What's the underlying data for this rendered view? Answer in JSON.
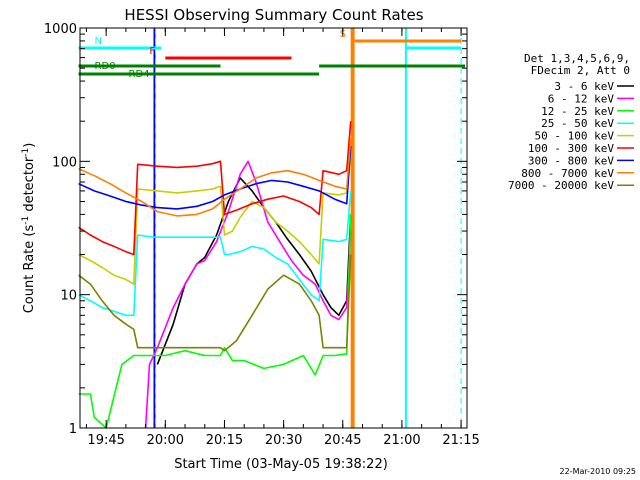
{
  "chart_data": {
    "type": "line",
    "title": "HESSI Observing Summary Count Rates",
    "xlabel": "Start Time (03-May-05 19:38:22)",
    "ylabel": "Count Rate (s-1 detector-1)",
    "ylabel_parts": {
      "main": "Count Rate (s",
      "sup1": "-1",
      "mid": " detector",
      "sup2": "-1",
      "end": ")"
    },
    "xlim": [
      "19:38:22",
      "21:16:30"
    ],
    "ylim": [
      1,
      1000
    ],
    "yscale": "log",
    "x_ticks": [
      "19:45",
      "20:00",
      "20:15",
      "20:30",
      "20:45",
      "21:00",
      "21:15"
    ],
    "y_ticks": [
      "1",
      "10",
      "100",
      "1000"
    ],
    "legend_header": [
      "Det 1,3,4,5,6,9,",
      "FDecim 2, Att 0"
    ],
    "legend_position": "right",
    "timestamp": "22-Mar-2010 09:25",
    "series": [
      {
        "name": "3 - 6 keV",
        "color": "#000000",
        "x": [
          "19:58",
          "20:02",
          "20:05",
          "20:08",
          "20:10",
          "20:13",
          "20:16",
          "20:19",
          "20:22",
          "20:25",
          "20:28",
          "20:31",
          "20:34",
          "20:37",
          "20:40",
          "20:42",
          "20:44",
          "20:46",
          "20:47"
        ],
        "y": [
          3,
          6,
          12,
          17,
          19,
          28,
          50,
          75,
          60,
          45,
          35,
          26,
          20,
          15,
          10,
          8,
          7,
          9,
          40
        ]
      },
      {
        "name": "6 - 12 keV",
        "color": "#ff00ff",
        "x": [
          "19:55",
          "19:56",
          "19:58",
          "20:02",
          "20:05",
          "20:08",
          "20:10",
          "20:13",
          "20:16",
          "20:19",
          "20:21",
          "20:23",
          "20:26",
          "20:29",
          "20:32",
          "20:35",
          "20:38",
          "20:40",
          "20:42",
          "20:44",
          "20:46",
          "20:47"
        ],
        "y": [
          1,
          3,
          4,
          8,
          12,
          17,
          18,
          25,
          42,
          80,
          100,
          70,
          35,
          25,
          18,
          14,
          12,
          9,
          7,
          6.5,
          8,
          30
        ]
      },
      {
        "name": "12 - 25 keV",
        "color": "#00ff00",
        "x": [
          "19:38",
          "19:41",
          "19:42",
          "19:45",
          "19:49",
          "19:52",
          "19:56",
          "20:00",
          "20:05",
          "20:10",
          "20:14",
          "20:15",
          "20:17",
          "20:20",
          "20:25",
          "20:30",
          "20:35",
          "20:38",
          "20:40",
          "20:43",
          "20:46",
          "20:47"
        ],
        "y": [
          1.8,
          1.8,
          1.2,
          1,
          3,
          3.5,
          3.5,
          3.5,
          3.8,
          3.5,
          3.5,
          4,
          3.2,
          3.2,
          2.8,
          3,
          3.5,
          2.5,
          3.5,
          3.5,
          3.6,
          40
        ]
      },
      {
        "name": "25 - 50 keV",
        "color": "#00ffff",
        "x": [
          "19:38",
          "19:41",
          "19:44",
          "19:47",
          "19:50",
          "19:52",
          "19:53",
          "19:57",
          "20:02",
          "20:07",
          "20:12",
          "20:14",
          "20:15",
          "20:16",
          "20:19",
          "20:22",
          "20:25",
          "20:28",
          "20:31",
          "20:34",
          "20:37",
          "20:39",
          "20:40",
          "20:44",
          "20:46",
          "20:47"
        ],
        "y": [
          10,
          9,
          8,
          7.5,
          7,
          7,
          28,
          27,
          27,
          27,
          27,
          27,
          20,
          20,
          21,
          23,
          22,
          19,
          17,
          13,
          10,
          9,
          26,
          25,
          26,
          60
        ]
      },
      {
        "name": "50 - 100 keV",
        "color": "#cccc00",
        "x": [
          "19:38",
          "19:41",
          "19:44",
          "19:47",
          "19:50",
          "19:52",
          "19:53",
          "19:58",
          "20:03",
          "20:08",
          "20:12",
          "20:14",
          "20:15",
          "20:17",
          "20:19",
          "20:22",
          "20:25",
          "20:28",
          "20:31",
          "20:34",
          "20:37",
          "20:39",
          "20:40",
          "20:44",
          "20:46",
          "20:47"
        ],
        "y": [
          20,
          18,
          16,
          14,
          13,
          12,
          62,
          60,
          58,
          60,
          62,
          65,
          28,
          30,
          38,
          50,
          45,
          35,
          30,
          25,
          20,
          17,
          58,
          56,
          58,
          110
        ]
      },
      {
        "name": "100 - 300 keV",
        "color": "#ff0000",
        "x": [
          "19:38",
          "19:41",
          "19:44",
          "19:47",
          "19:50",
          "19:52",
          "19:53",
          "19:58",
          "20:03",
          "20:08",
          "20:12",
          "20:14",
          "20:15",
          "20:18",
          "20:22",
          "20:26",
          "20:30",
          "20:34",
          "20:37",
          "20:39",
          "20:40",
          "20:44",
          "20:46",
          "20:47"
        ],
        "y": [
          32,
          28,
          25,
          23,
          21,
          20,
          95,
          92,
          90,
          92,
          96,
          100,
          40,
          43,
          48,
          52,
          55,
          50,
          45,
          40,
          85,
          80,
          85,
          200
        ]
      },
      {
        "name": "300 - 800 keV",
        "color": "#0000ff",
        "x": [
          "19:38",
          "19:42",
          "19:46",
          "19:50",
          "19:54",
          "19:58",
          "20:03",
          "20:08",
          "20:12",
          "20:15",
          "20:19",
          "20:23",
          "20:27",
          "20:31",
          "20:35",
          "20:39",
          "20:43",
          "20:46",
          "20:47"
        ],
        "y": [
          68,
          60,
          55,
          50,
          47,
          45,
          44,
          46,
          50,
          56,
          62,
          68,
          72,
          70,
          65,
          60,
          52,
          48,
          130
        ]
      },
      {
        "name": "800 - 7000 keV",
        "color": "#ff7f00",
        "x": [
          "19:38",
          "19:42",
          "19:46",
          "19:50",
          "19:54",
          "19:58",
          "20:03",
          "20:08",
          "20:12",
          "20:15",
          "20:19",
          "20:23",
          "20:27",
          "20:31",
          "20:35",
          "20:39",
          "20:43",
          "20:46",
          "20:47"
        ],
        "y": [
          88,
          78,
          68,
          58,
          50,
          42,
          39,
          40,
          44,
          52,
          62,
          75,
          82,
          85,
          80,
          72,
          65,
          62,
          150
        ]
      },
      {
        "name": "7000 - 20000 keV",
        "color": "#808000",
        "x": [
          "19:38",
          "19:41",
          "19:44",
          "19:47",
          "19:50",
          "19:52",
          "19:53",
          "19:58",
          "20:03",
          "20:08",
          "20:12",
          "20:14",
          "20:15",
          "20:18",
          "20:22",
          "20:26",
          "20:30",
          "20:34",
          "20:37",
          "20:39",
          "20:40",
          "20:44",
          "20:46",
          "20:47"
        ],
        "y": [
          14,
          12,
          9,
          7,
          6,
          5.5,
          4,
          4,
          4,
          4,
          4,
          4,
          3.8,
          4.5,
          7,
          11,
          14,
          12,
          9,
          7,
          4,
          4,
          4,
          20
        ]
      }
    ],
    "status_flags": [
      {
        "label": "N",
        "color": "#00ffff",
        "start": "19:38",
        "end": "19:59",
        "level": 1
      },
      {
        "label": "F",
        "color": "#ff0000",
        "start": "20:00",
        "end": "20:32",
        "level": 2
      },
      {
        "label": "S",
        "color": "#ff7f00",
        "start": "20:48",
        "end": "21:15",
        "level": 0
      },
      {
        "label": "",
        "color": "#00ffff",
        "start": "21:01",
        "end": "21:15",
        "level": 1
      },
      {
        "label": "RD0",
        "color": "#008000",
        "start": "19:38",
        "end": "20:14",
        "level": 3
      },
      {
        "label": "RD4",
        "color": "#008000",
        "start": "19:38",
        "end": "20:39",
        "level": 4
      },
      {
        "label": "",
        "color": "#008000",
        "start": "20:39",
        "end": "21:16",
        "level": 3
      }
    ],
    "vertical_markers": [
      {
        "time": "19:57:30",
        "color": "#00ffff",
        "style": "dashed"
      },
      {
        "time": "20:47:45",
        "color": "#ff7f00",
        "style": "solid"
      },
      {
        "time": "21:15:00",
        "color": "#00ffff",
        "style": "dashed"
      }
    ],
    "vertical_bars": [
      {
        "start": "19:57:00",
        "end": "19:57:30",
        "color": "#0000ff"
      },
      {
        "start": "20:47:00",
        "end": "20:48:00",
        "color": "#ff7f00"
      },
      {
        "start": "21:00:45",
        "end": "21:01:15",
        "color": "#00ffff"
      }
    ]
  }
}
